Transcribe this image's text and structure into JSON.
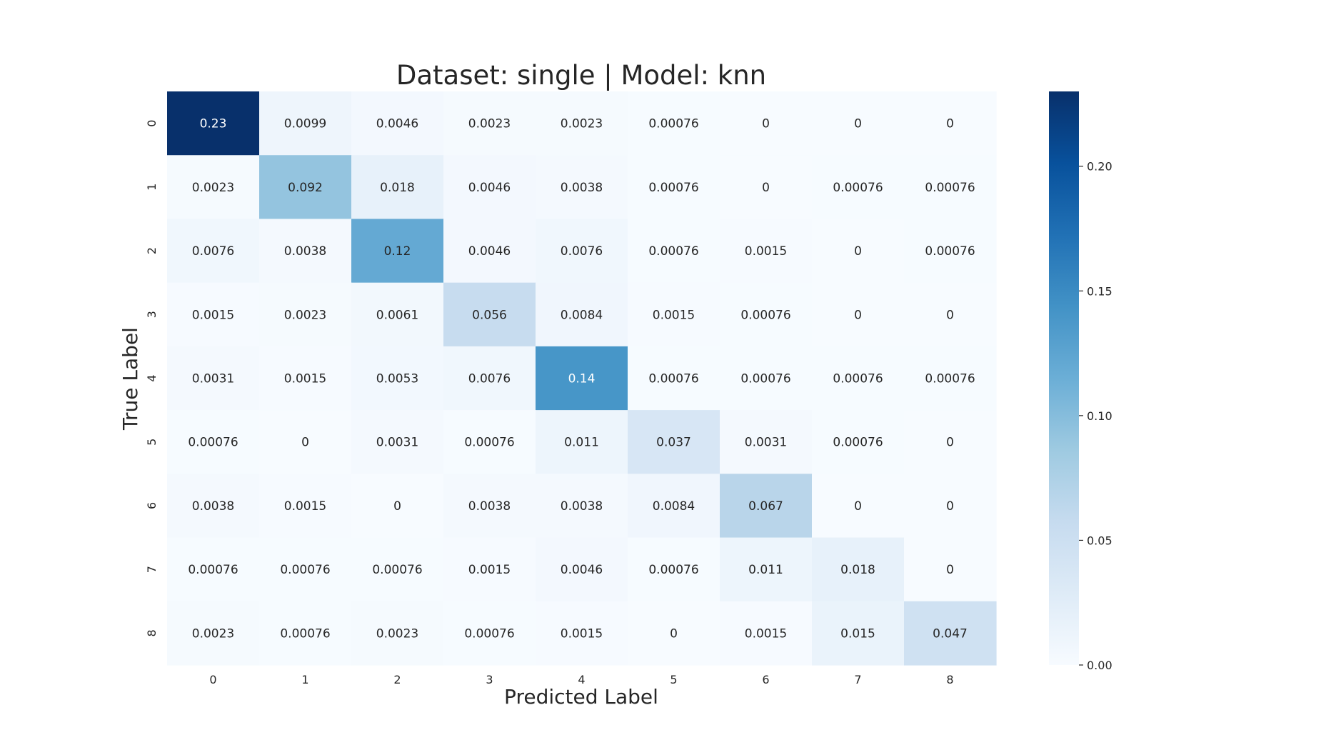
{
  "chart_data": {
    "type": "heatmap",
    "title": "Dataset: single | Model: knn",
    "xlabel": "Predicted Label",
    "ylabel": "True Label",
    "x_categories": [
      "0",
      "1",
      "2",
      "3",
      "4",
      "5",
      "6",
      "7",
      "8"
    ],
    "y_categories": [
      "0",
      "1",
      "2",
      "3",
      "4",
      "5",
      "6",
      "7",
      "8"
    ],
    "cell_labels": [
      [
        "0.23",
        "0.0099",
        "0.0046",
        "0.0023",
        "0.0023",
        "0.00076",
        "0",
        "0",
        "0"
      ],
      [
        "0.0023",
        "0.092",
        "0.018",
        "0.0046",
        "0.0038",
        "0.00076",
        "0",
        "0.00076",
        "0.00076"
      ],
      [
        "0.0076",
        "0.0038",
        "0.12",
        "0.0046",
        "0.0076",
        "0.00076",
        "0.0015",
        "0",
        "0.00076"
      ],
      [
        "0.0015",
        "0.0023",
        "0.0061",
        "0.056",
        "0.0084",
        "0.0015",
        "0.00076",
        "0",
        "0"
      ],
      [
        "0.0031",
        "0.0015",
        "0.0053",
        "0.0076",
        "0.14",
        "0.00076",
        "0.00076",
        "0.00076",
        "0.00076"
      ],
      [
        "0.00076",
        "0",
        "0.0031",
        "0.00076",
        "0.011",
        "0.037",
        "0.0031",
        "0.00076",
        "0"
      ],
      [
        "0.0038",
        "0.0015",
        "0",
        "0.0038",
        "0.0038",
        "0.0084",
        "0.067",
        "0",
        "0"
      ],
      [
        "0.00076",
        "0.00076",
        "0.00076",
        "0.0015",
        "0.0046",
        "0.00076",
        "0.011",
        "0.018",
        "0"
      ],
      [
        "0.0023",
        "0.00076",
        "0.0023",
        "0.00076",
        "0.0015",
        "0",
        "0.0015",
        "0.015",
        "0.047"
      ]
    ],
    "values": [
      [
        0.23,
        0.0099,
        0.0046,
        0.0023,
        0.0023,
        0.00076,
        0,
        0,
        0
      ],
      [
        0.0023,
        0.092,
        0.018,
        0.0046,
        0.0038,
        0.00076,
        0,
        0.00076,
        0.00076
      ],
      [
        0.0076,
        0.0038,
        0.12,
        0.0046,
        0.0076,
        0.00076,
        0.0015,
        0,
        0.00076
      ],
      [
        0.0015,
        0.0023,
        0.0061,
        0.056,
        0.0084,
        0.0015,
        0.00076,
        0,
        0
      ],
      [
        0.0031,
        0.0015,
        0.0053,
        0.0076,
        0.14,
        0.00076,
        0.00076,
        0.00076,
        0.00076
      ],
      [
        0.00076,
        0,
        0.0031,
        0.00076,
        0.011,
        0.037,
        0.0031,
        0.00076,
        0
      ],
      [
        0.0038,
        0.0015,
        0,
        0.0038,
        0.0038,
        0.0084,
        0.067,
        0,
        0
      ],
      [
        0.00076,
        0.00076,
        0.00076,
        0.0015,
        0.0046,
        0.00076,
        0.011,
        0.018,
        0
      ],
      [
        0.0023,
        0.00076,
        0.0023,
        0.00076,
        0.0015,
        0,
        0.0015,
        0.015,
        0.047
      ]
    ],
    "colorbar": {
      "min": 0,
      "max": 0.23,
      "ticks": [
        0.0,
        0.05,
        0.1,
        0.15,
        0.2
      ],
      "tick_labels": [
        "0.00",
        "0.05",
        "0.10",
        "0.15",
        "0.20"
      ],
      "colormap": "Blues"
    },
    "colors": {
      "text_dark": "#262626",
      "text_light": "#ffffff",
      "cmap_stops": [
        "#f7fbff",
        "#deebf7",
        "#c6dbef",
        "#9ecae1",
        "#6baed6",
        "#4292c6",
        "#2171b5",
        "#08519c",
        "#08306b"
      ]
    }
  }
}
